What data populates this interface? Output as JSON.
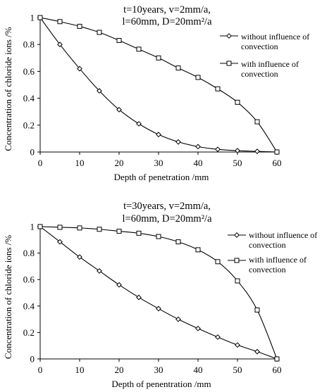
{
  "chart_data": [
    {
      "type": "line",
      "title_lines": [
        "t=10years,  v=2mm/a,",
        "l=60mm,  D=20mm²/a"
      ],
      "xlabel": "Depth of penetration /mm",
      "ylabel": "Concentration of chloride ions /%",
      "xlim": [
        0,
        60
      ],
      "ylim": [
        0,
        1
      ],
      "xticks": [
        "0",
        "10",
        "20",
        "30",
        "40",
        "50",
        "60"
      ],
      "yticks": [
        "0",
        "0.2",
        "0.4",
        "0.6",
        "0.8",
        "1"
      ],
      "grid": false,
      "legend_position": "right",
      "series": [
        {
          "name": "without influence of convection",
          "marker": "diamond",
          "x": [
            0,
            5,
            10,
            15,
            20,
            25,
            30,
            35,
            40,
            45,
            50,
            55,
            60
          ],
          "y": [
            1.0,
            0.8,
            0.62,
            0.455,
            0.315,
            0.21,
            0.13,
            0.075,
            0.04,
            0.02,
            0.01,
            0.005,
            0.0
          ]
        },
        {
          "name": "with influence of convection",
          "marker": "square",
          "x": [
            0,
            5,
            10,
            15,
            20,
            25,
            30,
            35,
            40,
            45,
            50,
            55,
            60
          ],
          "y": [
            1.0,
            0.97,
            0.935,
            0.89,
            0.83,
            0.765,
            0.7,
            0.625,
            0.555,
            0.47,
            0.37,
            0.225,
            0.0
          ]
        }
      ]
    },
    {
      "type": "line",
      "title_lines": [
        "t=30years,  v=2mm/a,",
        "l=60mm,  D=20mm²/a"
      ],
      "xlabel": "Depth of penentration /mm",
      "ylabel": "Concentration of chloride ions /%",
      "xlim": [
        0,
        60
      ],
      "ylim": [
        0,
        1
      ],
      "xticks": [
        "0",
        "10",
        "20",
        "30",
        "40",
        "50",
        "60"
      ],
      "yticks": [
        "0",
        "0.2",
        "0.4",
        "0.6",
        "0.8",
        "1"
      ],
      "grid": false,
      "legend_position": "right",
      "series": [
        {
          "name": "without influence of convection",
          "marker": "diamond",
          "x": [
            0,
            5,
            10,
            15,
            20,
            25,
            30,
            35,
            40,
            45,
            50,
            55,
            60
          ],
          "y": [
            1.0,
            0.885,
            0.77,
            0.665,
            0.56,
            0.465,
            0.38,
            0.3,
            0.23,
            0.165,
            0.105,
            0.055,
            0.0
          ]
        },
        {
          "name": "with influence of convection",
          "marker": "square",
          "x": [
            0,
            5,
            10,
            15,
            20,
            25,
            30,
            35,
            40,
            45,
            50,
            55,
            60
          ],
          "y": [
            1.0,
            0.995,
            0.99,
            0.98,
            0.965,
            0.95,
            0.925,
            0.885,
            0.825,
            0.735,
            0.59,
            0.37,
            0.0
          ]
        }
      ]
    }
  ]
}
